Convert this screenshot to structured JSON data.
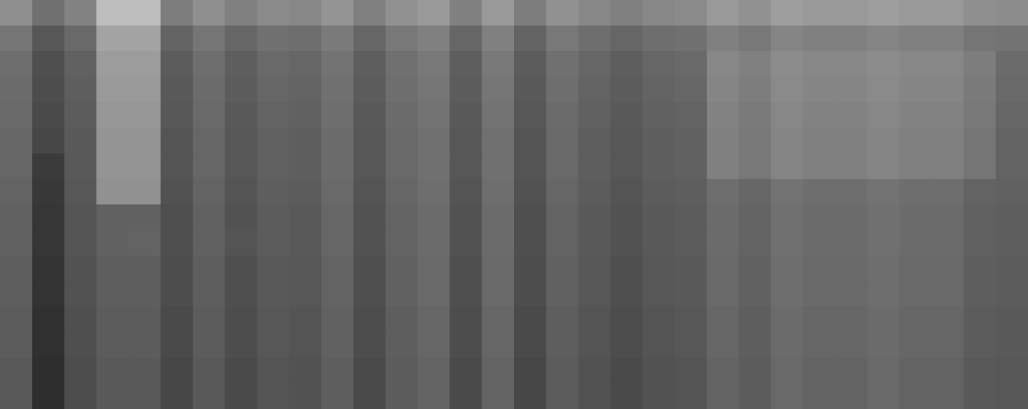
{
  "chart_data": {
    "type": "heatmap",
    "tick_labels": false,
    "color_range": [
      0,
      100
    ],
    "cells": [
      [
        56,
        44,
        51,
        74,
        74,
        49,
        56,
        50,
        54,
        53,
        58,
        50,
        57,
        60,
        50,
        60,
        49,
        57,
        53,
        50,
        53,
        54,
        60,
        57,
        62,
        60,
        60,
        62,
        60,
        60,
        56,
        55
      ],
      [
        46,
        34,
        41,
        64,
        64,
        39,
        46,
        40,
        44,
        43,
        48,
        40,
        47,
        50,
        40,
        50,
        39,
        47,
        43,
        40,
        43,
        44,
        50,
        47,
        52,
        50,
        50,
        52,
        50,
        50,
        46,
        45
      ],
      [
        43,
        31,
        38,
        61,
        61,
        36,
        43,
        37,
        41,
        40,
        45,
        37,
        44,
        47,
        37,
        47,
        36,
        44,
        40,
        37,
        40,
        41,
        53,
        50,
        55,
        53,
        53,
        55,
        53,
        53,
        49,
        42
      ],
      [
        42,
        30,
        37,
        60,
        60,
        35,
        42,
        36,
        40,
        39,
        44,
        36,
        43,
        46,
        36,
        46,
        35,
        43,
        39,
        36,
        39,
        40,
        52,
        49,
        54,
        52,
        52,
        54,
        52,
        52,
        48,
        41
      ],
      [
        41,
        29,
        36,
        59,
        59,
        34,
        41,
        35,
        39,
        38,
        43,
        35,
        42,
        45,
        35,
        45,
        34,
        42,
        38,
        35,
        38,
        39,
        51,
        48,
        53,
        51,
        51,
        53,
        51,
        51,
        47,
        40
      ],
      [
        40,
        28,
        35,
        58,
        58,
        33,
        40,
        34,
        38,
        37,
        42,
        34,
        41,
        44,
        34,
        44,
        33,
        41,
        37,
        34,
        37,
        38,
        50,
        47,
        52,
        50,
        50,
        52,
        50,
        50,
        46,
        39
      ],
      [
        40,
        23,
        35,
        58,
        58,
        33,
        40,
        34,
        38,
        37,
        42,
        34,
        41,
        44,
        34,
        44,
        33,
        41,
        37,
        34,
        37,
        38,
        50,
        47,
        52,
        50,
        50,
        52,
        50,
        50,
        46,
        39
      ],
      [
        39,
        22,
        34,
        57,
        57,
        32,
        39,
        33,
        37,
        36,
        41,
        33,
        40,
        43,
        33,
        43,
        32,
        40,
        36,
        33,
        36,
        37,
        43,
        40,
        45,
        43,
        43,
        45,
        43,
        43,
        39,
        38
      ],
      [
        38,
        21,
        33,
        38,
        38,
        31,
        38,
        32,
        36,
        35,
        40,
        32,
        39,
        42,
        32,
        42,
        31,
        39,
        35,
        32,
        35,
        36,
        42,
        39,
        44,
        42,
        42,
        44,
        42,
        42,
        38,
        37
      ],
      [
        38,
        21,
        33,
        38,
        39,
        31,
        38,
        33,
        36,
        35,
        40,
        32,
        39,
        42,
        32,
        42,
        31,
        39,
        35,
        32,
        35,
        36,
        42,
        39,
        44,
        42,
        42,
        44,
        42,
        42,
        38,
        37
      ],
      [
        37,
        20,
        32,
        37,
        37,
        30,
        37,
        31,
        35,
        34,
        39,
        31,
        38,
        41,
        31,
        41,
        30,
        38,
        34,
        31,
        34,
        35,
        41,
        38,
        43,
        41,
        41,
        43,
        41,
        41,
        37,
        36
      ],
      [
        37,
        20,
        32,
        37,
        37,
        30,
        37,
        31,
        35,
        34,
        39,
        31,
        38,
        41,
        31,
        41,
        30,
        38,
        34,
        31,
        34,
        35,
        41,
        38,
        43,
        41,
        41,
        43,
        41,
        41,
        37,
        36
      ],
      [
        36,
        19,
        31,
        36,
        36,
        29,
        36,
        30,
        34,
        33,
        38,
        30,
        37,
        40,
        30,
        40,
        29,
        37,
        33,
        30,
        33,
        34,
        40,
        37,
        42,
        40,
        40,
        42,
        40,
        40,
        36,
        35
      ],
      [
        36,
        19,
        31,
        36,
        36,
        29,
        36,
        30,
        34,
        33,
        38,
        30,
        37,
        40,
        30,
        40,
        29,
        37,
        33,
        30,
        33,
        34,
        40,
        37,
        42,
        40,
        40,
        42,
        40,
        40,
        36,
        35
      ],
      [
        35,
        18,
        30,
        35,
        35,
        28,
        35,
        29,
        33,
        32,
        37,
        29,
        36,
        39,
        29,
        39,
        28,
        36,
        32,
        29,
        32,
        33,
        39,
        36,
        41,
        39,
        39,
        41,
        39,
        39,
        35,
        34
      ],
      [
        35,
        18,
        30,
        35,
        35,
        28,
        35,
        29,
        33,
        32,
        37,
        29,
        36,
        39,
        29,
        39,
        28,
        36,
        32,
        29,
        32,
        33,
        39,
        36,
        41,
        39,
        39,
        41,
        39,
        39,
        35,
        34
      ]
    ]
  }
}
